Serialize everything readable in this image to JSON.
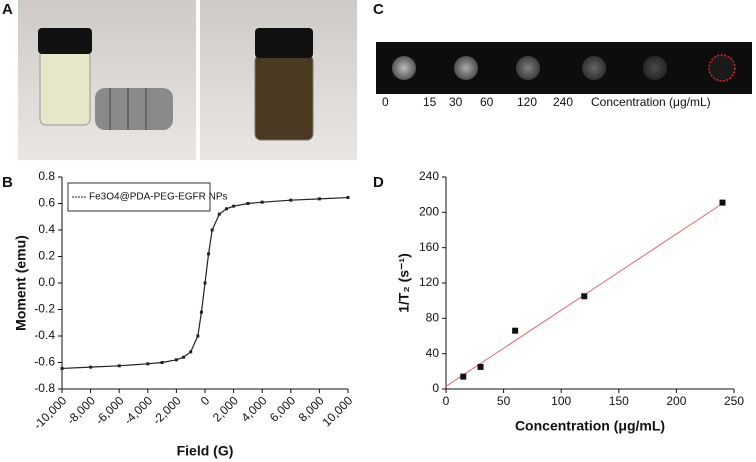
{
  "photos": {
    "panel": "A"
  },
  "mri": {
    "panel": "C",
    "concentrations": [
      0,
      15,
      30,
      60,
      120,
      240
    ],
    "label": "Concentration (μg/mL)"
  },
  "chart_data": [
    {
      "type": "line",
      "panel": "B",
      "xlabel": "Field (G)",
      "ylabel": "Moment (emu)",
      "x": [
        -10000,
        -8000,
        -6000,
        -4000,
        -3000,
        -2000,
        -1500,
        -1000,
        -500,
        -250,
        0,
        250,
        500,
        1000,
        1500,
        2000,
        3000,
        4000,
        6000,
        8000,
        10000
      ],
      "series": [
        {
          "name": "Fe3O4@PDA-PEG-EGFR NPs",
          "color": "#222222",
          "values": [
            -0.645,
            -0.635,
            -0.625,
            -0.61,
            -0.6,
            -0.58,
            -0.56,
            -0.52,
            -0.4,
            -0.22,
            0.0,
            0.22,
            0.4,
            0.52,
            0.56,
            0.58,
            0.6,
            0.61,
            0.625,
            0.635,
            0.645
          ]
        }
      ],
      "xlim": [
        -10000,
        10000
      ],
      "xticks": [
        {
          "value": -10000,
          "label": "-10,000"
        },
        {
          "value": -8000,
          "label": "-8,000"
        },
        {
          "value": -6000,
          "label": "-6,000"
        },
        {
          "value": -4000,
          "label": "-4,000"
        },
        {
          "value": -2000,
          "label": "-2,000"
        },
        0,
        {
          "value": 2000,
          "label": "2,000"
        },
        {
          "value": 4000,
          "label": "4,000"
        },
        {
          "value": 6000,
          "label": "6,000"
        },
        {
          "value": 8000,
          "label": "8,000"
        },
        {
          "value": 10000,
          "label": "10,000"
        }
      ],
      "ylim": [
        -0.8,
        0.8
      ],
      "yticks": [
        -0.8,
        -0.6,
        -0.4,
        -0.2,
        {
          "value": 0,
          "label": "0.0"
        },
        0.2,
        0.4,
        0.6,
        0.8
      ],
      "legend": "upper left"
    },
    {
      "type": "scatter",
      "panel": "D",
      "xlabel": "Concentration (μg/mL)",
      "ylabel": "1/T₂ (s⁻¹)",
      "x": [
        15,
        30,
        60,
        120,
        240
      ],
      "series": [
        {
          "color": "#111111",
          "values": [
            14,
            25,
            66,
            105,
            211
          ]
        }
      ],
      "fit": {
        "x": [
          0,
          240
        ],
        "values": [
          3,
          210
        ],
        "color": "#e06666"
      },
      "xlim": [
        0,
        250
      ],
      "xticks": [
        0,
        50,
        100,
        150,
        200,
        250
      ],
      "ylim": [
        0,
        240
      ],
      "yticks": [
        0,
        40,
        80,
        120,
        160,
        200,
        240
      ]
    }
  ]
}
